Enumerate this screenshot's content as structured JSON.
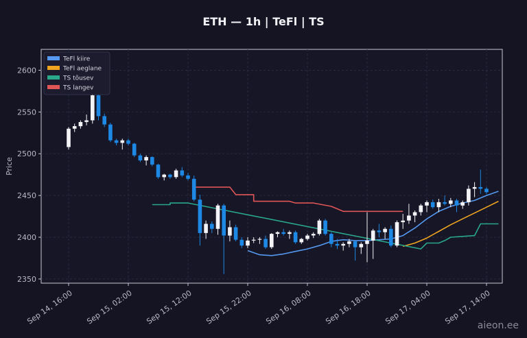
{
  "chart_data": {
    "type": "candlestick",
    "title": "ETH — 1h  |  TeFl  |  TS",
    "ylabel": "Price",
    "xlabel": "",
    "ylim": [
      2345,
      2625
    ],
    "yticks": [
      2350,
      2400,
      2450,
      2500,
      2550,
      2600
    ],
    "grid": true,
    "legend_position": "top-left",
    "x_tick_labels": [
      {
        "label": "Sep 14, 16:00",
        "index": 0
      },
      {
        "label": "Sep 15, 02:00",
        "index": 10
      },
      {
        "label": "Sep 15, 12:00",
        "index": 20
      },
      {
        "label": "Sep 15, 22:00",
        "index": 30
      },
      {
        "label": "Sep 16, 08:00",
        "index": 40
      },
      {
        "label": "Sep 16, 18:00",
        "index": 50
      },
      {
        "label": "Sep 17, 04:00",
        "index": 60
      },
      {
        "label": "Sep 17, 14:00",
        "index": 70
      }
    ],
    "colors": {
      "up": "#f4f4f8",
      "down": "#1e88e5"
    },
    "candles": [
      [
        2508,
        2532,
        2505,
        2530
      ],
      [
        2530,
        2536,
        2526,
        2533
      ],
      [
        2533,
        2540,
        2530,
        2538
      ],
      [
        2538,
        2547,
        2534,
        2540
      ],
      [
        2540,
        2572,
        2536,
        2570
      ],
      [
        2570,
        2572,
        2540,
        2545
      ],
      [
        2545,
        2548,
        2532,
        2535
      ],
      [
        2535,
        2537,
        2514,
        2516
      ],
      [
        2516,
        2518,
        2510,
        2513
      ],
      [
        2513,
        2518,
        2505,
        2516
      ],
      [
        2516,
        2518,
        2510,
        2512
      ],
      [
        2512,
        2513,
        2496,
        2498
      ],
      [
        2498,
        2500,
        2490,
        2492
      ],
      [
        2492,
        2498,
        2486,
        2496
      ],
      [
        2496,
        2497,
        2485,
        2487
      ],
      [
        2487,
        2488,
        2470,
        2472
      ],
      [
        2472,
        2476,
        2468,
        2475
      ],
      [
        2475,
        2476,
        2470,
        2472
      ],
      [
        2472,
        2482,
        2470,
        2480
      ],
      [
        2480,
        2484,
        2472,
        2474
      ],
      [
        2474,
        2477,
        2468,
        2470
      ],
      [
        2470,
        2474,
        2443,
        2445
      ],
      [
        2445,
        2451,
        2390,
        2405
      ],
      [
        2405,
        2420,
        2398,
        2416
      ],
      [
        2416,
        2419,
        2405,
        2410
      ],
      [
        2410,
        2440,
        2403,
        2438
      ],
      [
        2438,
        2440,
        2356,
        2402
      ],
      [
        2402,
        2420,
        2395,
        2412
      ],
      [
        2412,
        2415,
        2395,
        2397
      ],
      [
        2397,
        2400,
        2387,
        2390
      ],
      [
        2390,
        2400,
        2387,
        2396
      ],
      [
        2396,
        2400,
        2393,
        2397
      ],
      [
        2397,
        2400,
        2392,
        2398
      ],
      [
        2398,
        2402,
        2386,
        2388
      ],
      [
        2388,
        2405,
        2386,
        2404
      ],
      [
        2404,
        2407,
        2400,
        2406
      ],
      [
        2406,
        2410,
        2402,
        2404
      ],
      [
        2404,
        2408,
        2398,
        2406
      ],
      [
        2406,
        2408,
        2392,
        2394
      ],
      [
        2394,
        2399,
        2392,
        2398
      ],
      [
        2398,
        2404,
        2396,
        2402
      ],
      [
        2402,
        2406,
        2399,
        2404
      ],
      [
        2404,
        2422,
        2402,
        2420
      ],
      [
        2420,
        2422,
        2402,
        2404
      ],
      [
        2404,
        2406,
        2388,
        2392
      ],
      [
        2392,
        2398,
        2386,
        2390
      ],
      [
        2390,
        2394,
        2384,
        2392
      ],
      [
        2392,
        2398,
        2388,
        2395
      ],
      [
        2395,
        2396,
        2372,
        2388
      ],
      [
        2388,
        2394,
        2380,
        2392
      ],
      [
        2392,
        2430,
        2370,
        2396
      ],
      [
        2396,
        2410,
        2374,
        2408
      ],
      [
        2408,
        2416,
        2400,
        2406
      ],
      [
        2406,
        2412,
        2398,
        2410
      ],
      [
        2410,
        2414,
        2388,
        2390
      ],
      [
        2390,
        2420,
        2388,
        2418
      ],
      [
        2418,
        2428,
        2410,
        2420
      ],
      [
        2420,
        2440,
        2416,
        2426
      ],
      [
        2426,
        2432,
        2418,
        2430
      ],
      [
        2430,
        2440,
        2426,
        2438
      ],
      [
        2438,
        2444,
        2430,
        2442
      ],
      [
        2442,
        2445,
        2434,
        2436
      ],
      [
        2436,
        2446,
        2430,
        2442
      ],
      [
        2442,
        2450,
        2438,
        2440
      ],
      [
        2440,
        2447,
        2436,
        2444
      ],
      [
        2444,
        2446,
        2430,
        2438
      ],
      [
        2438,
        2444,
        2434,
        2442
      ],
      [
        2442,
        2462,
        2438,
        2458
      ],
      [
        2458,
        2466,
        2448,
        2460
      ],
      [
        2460,
        2481,
        2452,
        2458
      ],
      [
        2458,
        2460,
        2452,
        2454
      ]
    ],
    "series": [
      {
        "name": "TeFl kiire",
        "color": "#5599f0",
        "type": "line",
        "points": [
          [
            30,
            2384
          ],
          [
            32,
            2379
          ],
          [
            34,
            2378
          ],
          [
            36,
            2380
          ],
          [
            38,
            2383
          ],
          [
            40,
            2386
          ],
          [
            42,
            2390
          ],
          [
            44,
            2395
          ],
          [
            46,
            2397
          ],
          [
            48,
            2396
          ],
          [
            50,
            2396
          ],
          [
            52,
            2397
          ],
          [
            54,
            2398
          ],
          [
            56,
            2402
          ],
          [
            58,
            2411
          ],
          [
            60,
            2422
          ],
          [
            62,
            2431
          ],
          [
            64,
            2437
          ],
          [
            66,
            2441
          ],
          [
            68,
            2444
          ],
          [
            70,
            2450
          ],
          [
            72,
            2455
          ]
        ]
      },
      {
        "name": "TeFl aeglane",
        "color": "#f0a520",
        "type": "line",
        "points": [
          [
            56,
            2389
          ],
          [
            58,
            2393
          ],
          [
            60,
            2399
          ],
          [
            62,
            2407
          ],
          [
            64,
            2415
          ],
          [
            66,
            2422
          ],
          [
            68,
            2429
          ],
          [
            70,
            2436
          ],
          [
            72,
            2443
          ]
        ]
      },
      {
        "name": "TS tõusev",
        "color": "#2aa88a",
        "type": "step",
        "points": [
          [
            14,
            2439
          ],
          [
            17,
            2439
          ],
          [
            17,
            2441
          ],
          [
            20,
            2441
          ],
          [
            20,
            2441
          ],
          [
            59,
            2386
          ],
          [
            60,
            2393
          ],
          [
            62,
            2393
          ],
          [
            63,
            2396
          ],
          [
            64,
            2400
          ],
          [
            66,
            2401
          ],
          [
            68,
            2402
          ],
          [
            69,
            2416
          ],
          [
            72,
            2416
          ]
        ]
      },
      {
        "name": "TS langev",
        "color": "#e05555",
        "type": "step",
        "points": [
          [
            21,
            2460
          ],
          [
            27,
            2460
          ],
          [
            28,
            2451
          ],
          [
            31,
            2451
          ],
          [
            31,
            2443
          ],
          [
            37,
            2443
          ],
          [
            38,
            2441
          ],
          [
            41,
            2441
          ],
          [
            44,
            2437
          ],
          [
            46,
            2431
          ],
          [
            56,
            2431
          ]
        ]
      }
    ]
  },
  "watermark": "aieon.ee"
}
